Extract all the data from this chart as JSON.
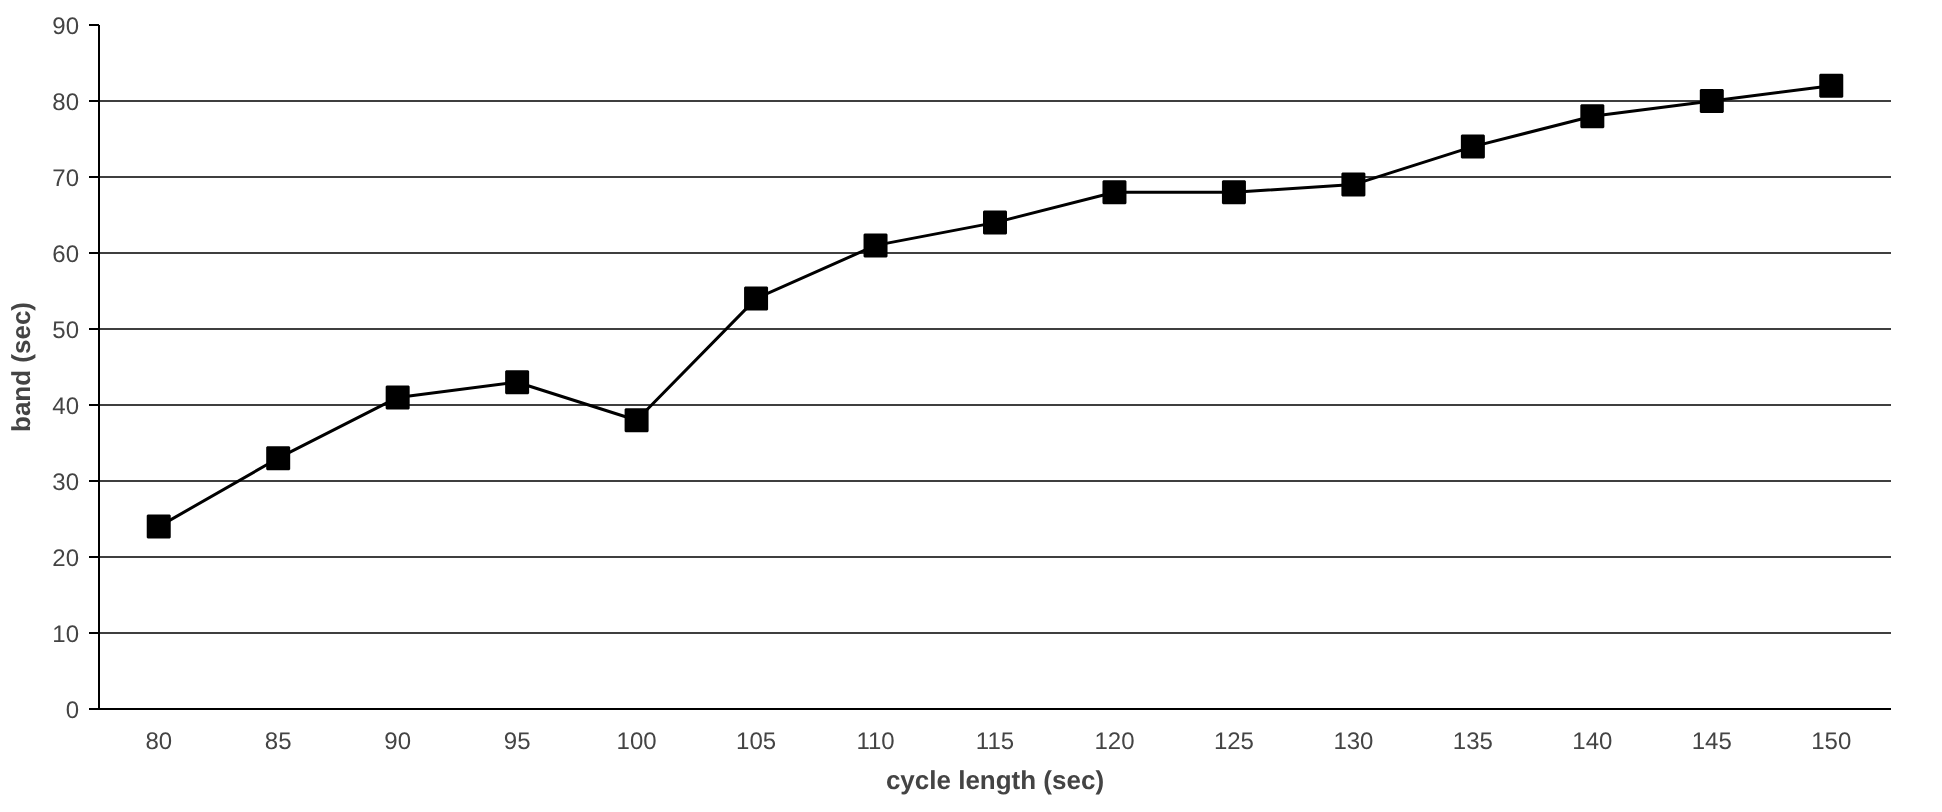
{
  "chart_data": {
    "type": "line",
    "xlabel": "cycle length (sec)",
    "ylabel": "band (sec)",
    "categories": [
      "80",
      "85",
      "90",
      "95",
      "100",
      "105",
      "110",
      "115",
      "120",
      "125",
      "130",
      "135",
      "140",
      "145",
      "150"
    ],
    "series": [
      {
        "color": "#000000",
        "values": [
          24,
          33,
          41,
          43,
          38,
          54,
          61,
          64,
          68,
          68,
          69,
          74,
          78,
          80,
          82
        ]
      }
    ],
    "ylim": [
      0,
      90
    ],
    "yticks": [
      0,
      10,
      20,
      30,
      40,
      50,
      60,
      70,
      80,
      90
    ],
    "grid": "y",
    "marker": "square",
    "line_style": "solid"
  }
}
